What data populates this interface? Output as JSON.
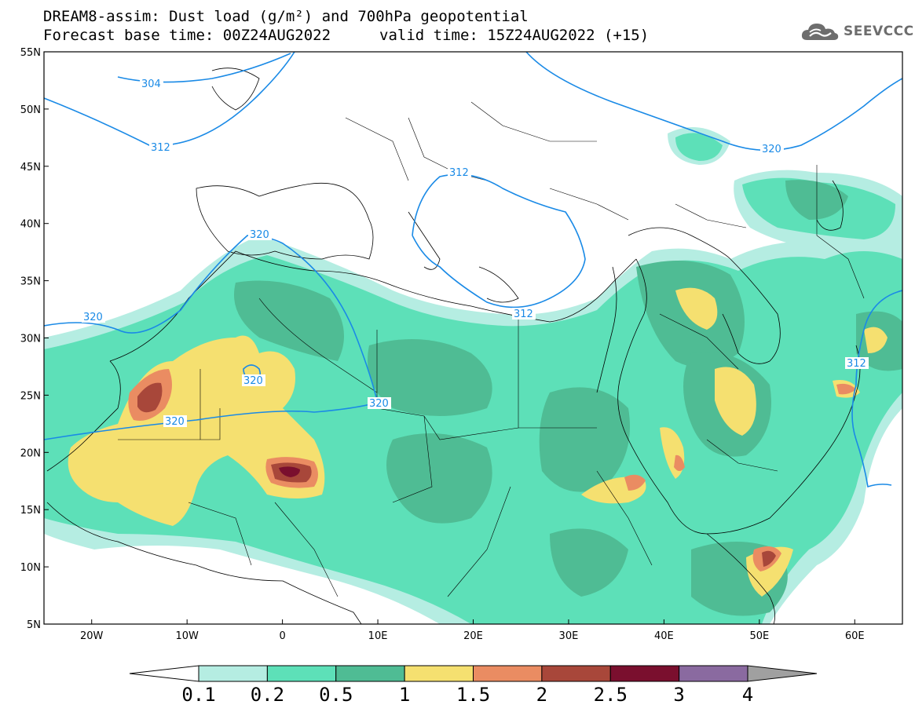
{
  "title": {
    "line1": "DREAM8-assim: Dust load (g/m²) and 700hPa geopotential",
    "line2": "Forecast base time: 00Z24AUG2022",
    "valid": "valid time: 15Z24AUG2022 (+15)"
  },
  "logo": {
    "text": "SEEVCCC",
    "icon": "cloud-icon"
  },
  "map": {
    "lon_range": [
      -25,
      65
    ],
    "lat_range": [
      5,
      55
    ],
    "lat_ticks": [
      "55N",
      "50N",
      "45N",
      "40N",
      "35N",
      "30N",
      "25N",
      "20N",
      "15N",
      "10N",
      "5N"
    ],
    "lon_ticks": [
      "20W",
      "10W",
      "0",
      "10E",
      "20E",
      "30E",
      "40E",
      "50E",
      "60E"
    ],
    "contour_color": "#1a8ae6",
    "contour_labels": [
      "304",
      "312",
      "312",
      "312",
      "320",
      "320",
      "320",
      "320",
      "320",
      "320",
      "312"
    ]
  },
  "legend": {
    "levels": [
      "0.1",
      "0.2",
      "0.5",
      "1",
      "1.5",
      "2",
      "2.5",
      "3",
      "4"
    ],
    "colors": [
      "#b5ede2",
      "#5de0b8",
      "#4fbc94",
      "#f5e070",
      "#ea8c62",
      "#a8473a",
      "#7a0f2e",
      "#8a6aa0"
    ],
    "under_color": "#ffffff",
    "over_color": "#a0a0a0"
  },
  "colors": {
    "dust_01": "#b5ede2",
    "dust_02": "#5de0b8",
    "dust_05": "#4fbc94",
    "dust_1": "#f5e070",
    "dust_15": "#ea8c62",
    "dust_2": "#a8473a",
    "dust_25": "#7a0f2e"
  }
}
